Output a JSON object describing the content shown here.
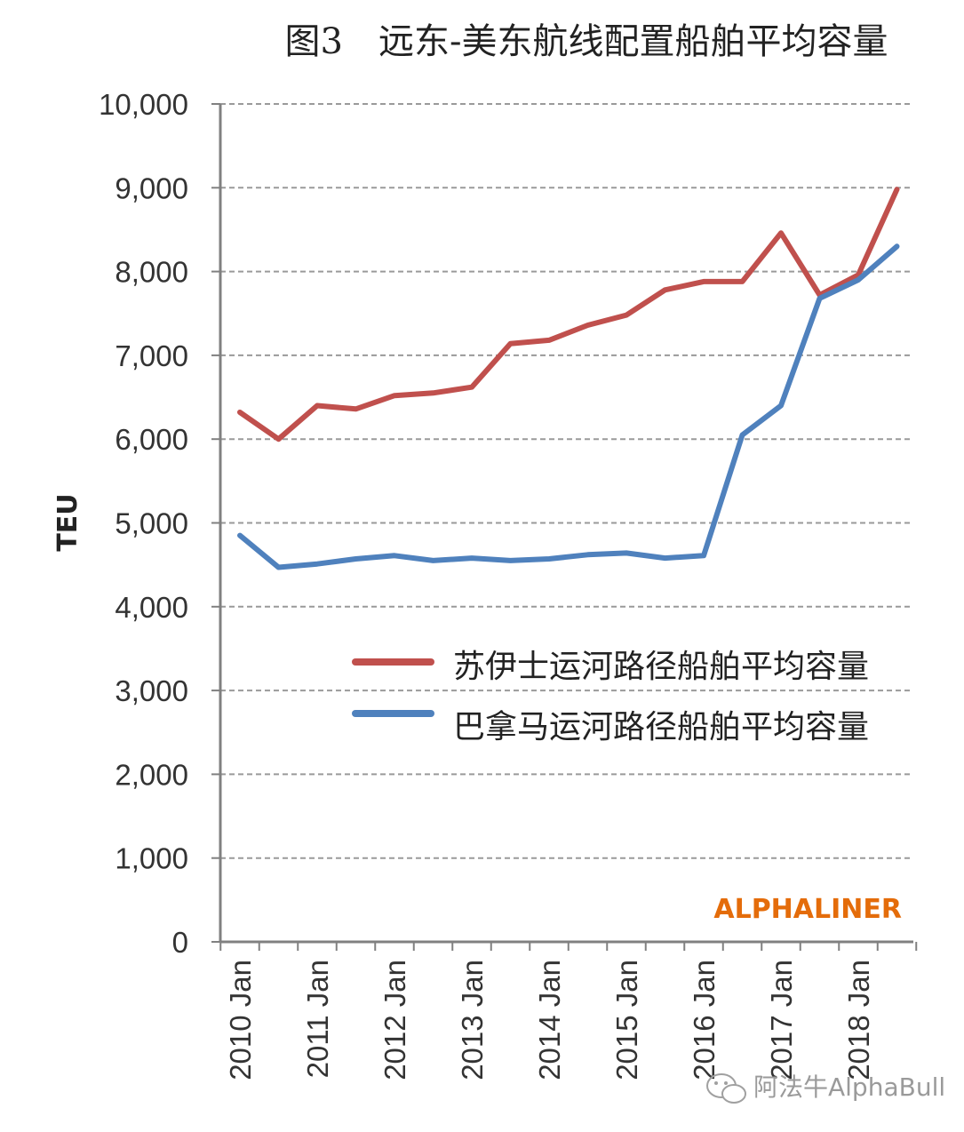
{
  "chart_data": {
    "type": "line",
    "title": "图3　远东-美东航线配置船舶平均容量",
    "ylabel": "TEU",
    "xlabel": "",
    "ylim": [
      0,
      10000
    ],
    "ytick_labels": [
      "0",
      "1,000",
      "2,000",
      "3,000",
      "4,000",
      "5,000",
      "6,000",
      "7,000",
      "8,000",
      "9,000",
      "10,000"
    ],
    "x_tick_labels": [
      "2010 Jan",
      "2011 Jan",
      "2012 Jan",
      "2013 Jan",
      "2014 Jan",
      "2015 Jan",
      "2016 Jan",
      "2017 Jan",
      "2018 Jan"
    ],
    "x_points_per_year": 2,
    "grid": true,
    "legend_position": "center-right",
    "colors": {
      "suez": "#c0504d",
      "panama": "#4f81bd",
      "source": "#e46c0a"
    },
    "series": [
      {
        "name": "苏伊士运河路径船舶平均容量",
        "color": "#c0504d",
        "values": [
          6320,
          6000,
          6400,
          6360,
          6520,
          6550,
          6620,
          7140,
          7180,
          7360,
          7480,
          7780,
          7880,
          7880,
          8460,
          7720,
          7960,
          8980
        ]
      },
      {
        "name": "巴拿马运河路径船舶平均容量",
        "color": "#4f81bd",
        "values": [
          4850,
          4470,
          4510,
          4570,
          4610,
          4550,
          4580,
          4550,
          4570,
          4620,
          4640,
          4580,
          4610,
          6050,
          6400,
          7680,
          7900,
          8300
        ]
      }
    ],
    "source_label": "ALPHALINER"
  },
  "watermark": {
    "text": "阿法牛AlphaBull",
    "icon": "wechat-icon"
  }
}
